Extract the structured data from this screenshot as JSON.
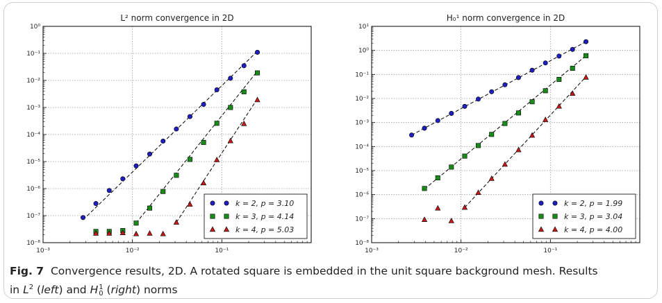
{
  "chart_data": [
    {
      "type": "scatter",
      "title": "L² norm convergence in 2D",
      "xscale": "log",
      "yscale": "log",
      "xlim": [
        0.001,
        1
      ],
      "ylim": [
        1e-08,
        1
      ],
      "xticks": [
        "10⁻³",
        "10⁻²",
        "10⁻¹"
      ],
      "yticks": [
        "10⁻⁸",
        "10⁻⁷",
        "10⁻⁶",
        "10⁻⁵",
        "10⁻⁴",
        "10⁻³",
        "10⁻²",
        "10⁻¹",
        "10⁰"
      ],
      "grid": true,
      "legend_position": "bottom-right",
      "series": [
        {
          "name": "k = 2, p = 3.10",
          "color": "#1f1fbf",
          "marker": "circle",
          "x": [
            0.0028,
            0.0039,
            0.0055,
            0.0078,
            0.011,
            0.0156,
            0.022,
            0.031,
            0.044,
            0.0625,
            0.088,
            0.125,
            0.177,
            0.25
          ],
          "y": [
            8.5e-08,
            2.8e-07,
            8.5e-07,
            2.3e-06,
            6.9e-06,
            1.9e-05,
            5.7e-05,
            0.00016,
            0.00046,
            0.0013,
            0.0045,
            0.012,
            0.035,
            0.11
          ],
          "fit": {
            "x": [
              0.0028,
              0.25
            ],
            "y": [
              7e-08,
              0.12
            ]
          }
        },
        {
          "name": "k = 3, p = 4.14",
          "color": "#1a8a1a",
          "marker": "square",
          "x": [
            0.0039,
            0.0055,
            0.0078,
            0.011,
            0.0156,
            0.022,
            0.031,
            0.044,
            0.0625,
            0.088,
            0.125,
            0.177,
            0.25
          ],
          "y": [
            2.6e-08,
            2.6e-08,
            2.8e-08,
            5.3e-08,
            1.9e-07,
            7.8e-07,
            3.1e-06,
            1.2e-05,
            5.1e-05,
            0.00026,
            0.001,
            0.0038,
            0.019
          ],
          "fit": {
            "x": [
              0.011,
              0.25
            ],
            "y": [
              5.3e-08,
              0.022
            ]
          }
        },
        {
          "name": "k = 4, p = 5.03",
          "color": "#c41a1a",
          "marker": "triangle",
          "x": [
            0.0039,
            0.0055,
            0.0078,
            0.011,
            0.0156,
            0.022,
            0.031,
            0.044,
            0.0625,
            0.088,
            0.125,
            0.177,
            0.25
          ],
          "y": [
            2.2e-08,
            2.2e-08,
            2.3e-08,
            2.1e-08,
            2.2e-08,
            2.1e-08,
            5.6e-08,
            2.6e-07,
            1.6e-06,
            1.15e-05,
            5.8e-05,
            0.00025,
            0.0019
          ],
          "fit": {
            "x": [
              0.031,
              0.25
            ],
            "y": [
              5.6e-08,
              0.0021
            ]
          }
        }
      ]
    },
    {
      "type": "scatter",
      "title": "H₀¹ norm convergence in 2D",
      "xscale": "log",
      "yscale": "log",
      "xlim": [
        0.001,
        1
      ],
      "ylim": [
        1e-08,
        10
      ],
      "xticks": [
        "10⁻³",
        "10⁻²",
        "10⁻¹"
      ],
      "yticks": [
        "10⁻⁸",
        "10⁻⁷",
        "10⁻⁶",
        "10⁻⁵",
        "10⁻⁴",
        "10⁻³",
        "10⁻²",
        "10⁻¹",
        "10⁰",
        "10¹"
      ],
      "grid": true,
      "legend_position": "bottom-right",
      "series": [
        {
          "name": "k = 2, p = 1.99",
          "color": "#1f1fbf",
          "marker": "circle",
          "x": [
            0.0028,
            0.0039,
            0.0055,
            0.0078,
            0.011,
            0.0156,
            0.022,
            0.031,
            0.044,
            0.0625,
            0.088,
            0.125,
            0.177,
            0.25
          ],
          "y": [
            0.0003,
            0.00058,
            0.0012,
            0.0024,
            0.0047,
            0.0094,
            0.019,
            0.037,
            0.074,
            0.15,
            0.3,
            0.58,
            1.1,
            2.3
          ],
          "fit": {
            "x": [
              0.0028,
              0.25
            ],
            "y": [
              0.0003,
              2.3
            ]
          }
        },
        {
          "name": "k = 3, p = 3.04",
          "color": "#1a8a1a",
          "marker": "square",
          "x": [
            0.0039,
            0.0055,
            0.0078,
            0.011,
            0.0156,
            0.022,
            0.031,
            0.044,
            0.0625,
            0.088,
            0.125,
            0.177,
            0.25
          ],
          "y": [
            1.8e-06,
            5e-06,
            1.4e-05,
            4e-05,
            0.00011,
            0.00032,
            0.00091,
            0.0025,
            0.0073,
            0.021,
            0.062,
            0.18,
            0.6
          ],
          "fit": {
            "x": [
              0.0039,
              0.25
            ],
            "y": [
              1.7e-06,
              0.6
            ]
          }
        },
        {
          "name": "k = 4, p = 4.00",
          "color": "#c41a1a",
          "marker": "triangle",
          "x": [
            0.0039,
            0.0055,
            0.0078,
            0.011,
            0.0156,
            0.022,
            0.031,
            0.044,
            0.0625,
            0.088,
            0.125,
            0.177,
            0.25
          ],
          "y": [
            9e-08,
            2.7e-07,
            8e-08,
            2.9e-07,
            1.2e-06,
            4.6e-06,
            1.8e-05,
            7.2e-05,
            0.00029,
            0.0013,
            0.0047,
            0.016,
            0.075
          ],
          "fit": {
            "x": [
              0.011,
              0.25
            ],
            "y": [
              2.9e-07,
              0.08
            ]
          }
        }
      ]
    }
  ],
  "caption": {
    "figure_label": "Fig. 7",
    "text": "Convergence results, 2D. A rotated square is embedded in the unit square background mesh. Results",
    "line2_prefix": "in",
    "left_norm": "L",
    "left_sup": "2",
    "left_word": "left",
    "and_text": "and",
    "right_norm": "H",
    "right_sup": "1",
    "right_sub": "0",
    "right_word": "right",
    "suffix": "norms"
  }
}
